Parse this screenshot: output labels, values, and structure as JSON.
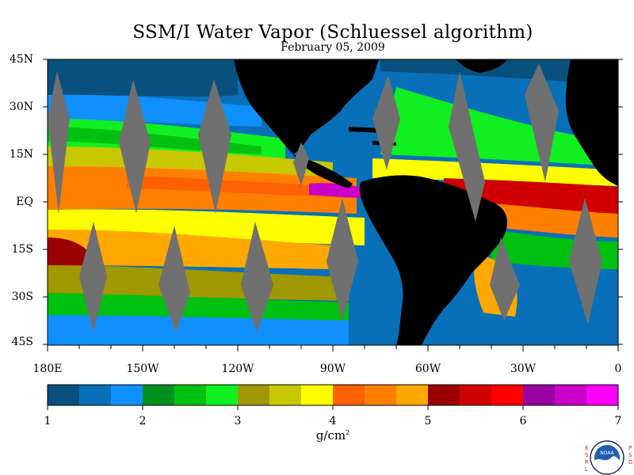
{
  "title": "SSM/I Water Vapor (Schluessel algorithm)",
  "date": "February 05, 2009",
  "latitude_labels": [
    "45N",
    "30N",
    "15N",
    "EQ",
    "15S",
    "30S",
    "45S"
  ],
  "longitude_labels": [
    "180E",
    "150W",
    "120W",
    "90W",
    "60W",
    "30W",
    "0"
  ],
  "colorbar": {
    "labels": [
      "1",
      "2",
      "3",
      "4",
      "5",
      "6",
      "7"
    ],
    "unit_base": "g/cm",
    "unit_exp": "2",
    "colors": [
      "#08507e",
      "#0870b8",
      "#1090ff",
      "#009020",
      "#00c010",
      "#10f020",
      "#a09800",
      "#c8c800",
      "#ffff00",
      "#ff6000",
      "#ff8000",
      "#ffa800",
      "#9a0000",
      "#d00000",
      "#ff0000",
      "#9800a0",
      "#c800c8",
      "#ff00ff"
    ]
  },
  "logo": {
    "top_text": "NOAA",
    "side_left": "ESRL",
    "side_right": "PSD"
  },
  "chart_data": {
    "type": "heatmap",
    "lon_range": [
      -180,
      0
    ],
    "lat_range": [
      -45,
      45
    ],
    "value_range": [
      1,
      7
    ],
    "land_color": "#000000",
    "missing_data_color": "#707070"
  }
}
